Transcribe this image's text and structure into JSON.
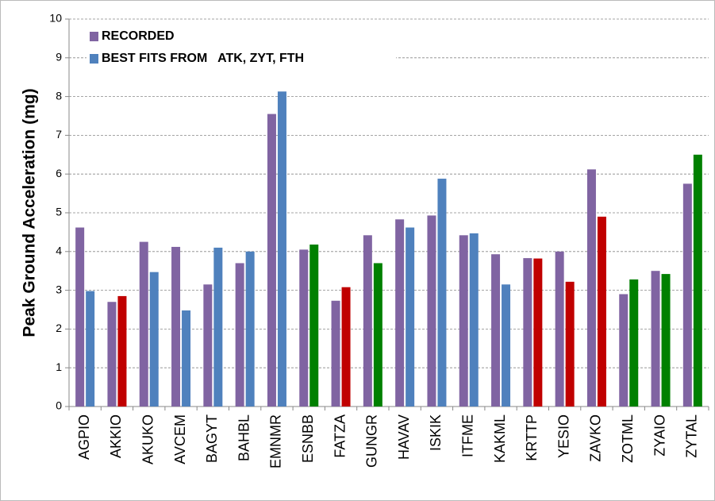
{
  "chart_data": {
    "type": "bar",
    "y_label": "Peak Ground Acceleration (mg)",
    "categories": [
      "AGPIO",
      "AKKIO",
      "AKUKO",
      "AVCEM",
      "BAGYT",
      "BAHBL",
      "EMNMR",
      "ESNBB",
      "FATZA",
      "GUNGR",
      "HAVAV",
      "ISKIK",
      "ITFME",
      "KAKML",
      "KRTTP",
      "YESIO",
      "ZAVKO",
      "ZOTML",
      "ZYAIO",
      "ZYTAL"
    ],
    "series": [
      {
        "name": "RECORDED",
        "color": "#8064a2",
        "values": [
          4.62,
          2.7,
          4.25,
          4.12,
          3.15,
          3.7,
          7.55,
          4.05,
          2.73,
          4.42,
          4.83,
          4.93,
          4.42,
          3.93,
          3.83,
          4.0,
          6.12,
          2.9,
          3.5,
          5.75
        ]
      },
      {
        "name": "BEST FITS FROM   ATK, ZYT, FTH",
        "color": "#4f81bd",
        "colors": [
          "#4f81bd",
          "#c00000",
          "#4f81bd",
          "#4f81bd",
          "#4f81bd",
          "#4f81bd",
          "#4f81bd",
          "#008000",
          "#c00000",
          "#008000",
          "#4f81bd",
          "#4f81bd",
          "#4f81bd",
          "#4f81bd",
          "#c00000",
          "#c00000",
          "#c00000",
          "#008000",
          "#008000",
          "#008000"
        ],
        "values": [
          2.98,
          2.85,
          3.47,
          2.48,
          4.1,
          4.0,
          8.13,
          4.18,
          3.08,
          3.7,
          4.62,
          5.88,
          4.47,
          3.15,
          3.82,
          3.22,
          4.9,
          3.28,
          3.42,
          6.5
        ]
      }
    ],
    "ylim": [
      0,
      10
    ],
    "yticks": [
      0,
      1,
      2,
      3,
      4,
      5,
      6,
      7,
      8,
      9,
      10
    ],
    "grid": true,
    "legend": "upper left"
  }
}
